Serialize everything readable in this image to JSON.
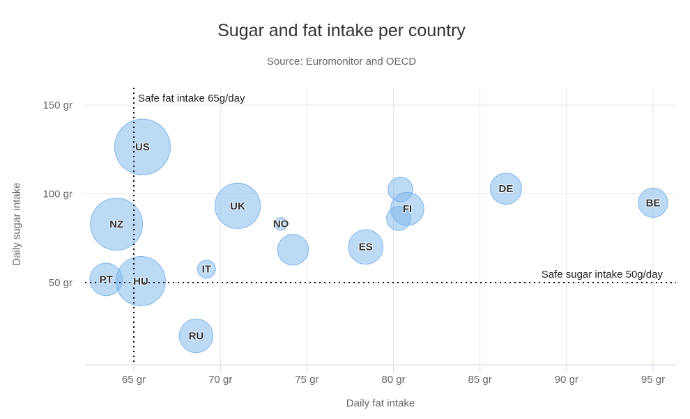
{
  "colors": {
    "bubble_fill": "rgba(124,181,236,0.5)",
    "bubble_stroke": "#7cb5ec",
    "grid_line": "#e6e6e6",
    "axis_line": "#ccd6eb",
    "plot_line": "#000000",
    "title_text": "#333333",
    "muted_text": "#666666",
    "label_text": "#333333"
  },
  "chart_data": {
    "type": "scatter",
    "variant": "bubble",
    "title": "Sugar and fat intake per country",
    "subtitle": "Source: Euromonitor and OECD",
    "xlabel": "Daily fat intake",
    "ylabel": "Daily sugar intake",
    "xlim": [
      62.3,
      96.4
    ],
    "ylim": [
      4,
      160
    ],
    "grid": true,
    "legend": false,
    "size_by": "area",
    "x_ticks": {
      "values": [
        65,
        70,
        75,
        80,
        85,
        90,
        95
      ],
      "suffix": " gr"
    },
    "y_ticks": {
      "values": [
        50,
        100,
        150
      ],
      "suffix": " gr"
    },
    "annotations": [
      {
        "axis": "x",
        "value": 65,
        "text": "Safe fat intake 65g/day"
      },
      {
        "axis": "y",
        "value": 50,
        "text": "Safe sugar intake 50g/day"
      }
    ],
    "points": [
      {
        "label": "BE",
        "x": 95,
        "y": 95,
        "z": 13.8
      },
      {
        "label": "DE",
        "x": 86.5,
        "y": 102.9,
        "z": 14.7
      },
      {
        "label": "FI",
        "x": 80.8,
        "y": 91.5,
        "z": 15.8
      },
      {
        "label": "",
        "x": 80.4,
        "y": 102.5,
        "z": 12
      },
      {
        "label": "",
        "x": 80.3,
        "y": 86.1,
        "z": 11.8
      },
      {
        "label": "ES",
        "x": 78.4,
        "y": 70.1,
        "z": 16.6
      },
      {
        "label": "",
        "x": 74.2,
        "y": 68.5,
        "z": 14.5
      },
      {
        "label": "NO",
        "x": 73.5,
        "y": 83.1,
        "z": 10
      },
      {
        "label": "UK",
        "x": 71,
        "y": 93.2,
        "z": 24.7
      },
      {
        "label": "IT",
        "x": 69.2,
        "y": 57.6,
        "z": 10.4
      },
      {
        "label": "RU",
        "x": 68.6,
        "y": 20,
        "z": 16
      },
      {
        "label": "US",
        "x": 65.5,
        "y": 126.4,
        "z": 35.3
      },
      {
        "label": "HU",
        "x": 65.4,
        "y": 50.8,
        "z": 28.5
      },
      {
        "label": "PT",
        "x": 63.4,
        "y": 51.8,
        "z": 15.4
      },
      {
        "label": "NZ",
        "x": 64,
        "y": 82.9,
        "z": 31.3
      }
    ]
  }
}
